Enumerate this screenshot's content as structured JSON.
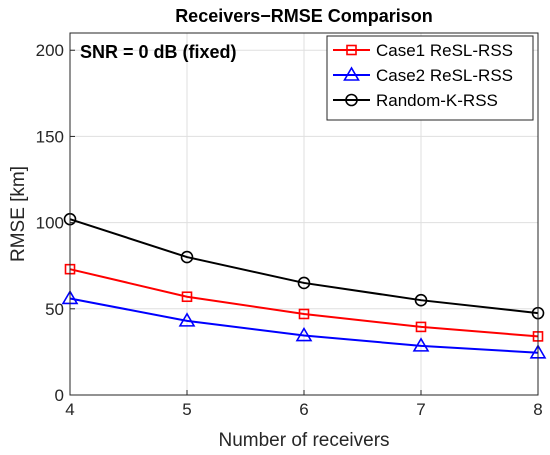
{
  "chart_data": {
    "type": "line",
    "title": "Receivers−RMSE Comparison",
    "xlabel": "Number of receivers",
    "ylabel": "RMSE [km]",
    "annotation": "SNR = 0 dB (fixed)",
    "x": [
      4,
      5,
      6,
      7,
      8
    ],
    "xticks": [
      "4",
      "5",
      "6",
      "7",
      "8"
    ],
    "yticks": [
      "0",
      "50",
      "100",
      "150",
      "200"
    ],
    "xlim": [
      4,
      8
    ],
    "ylim": [
      0,
      210
    ],
    "grid": true,
    "legend_position": "top-right",
    "series": [
      {
        "name": "Case1 ReSL-RSS",
        "values": [
          73,
          57,
          47,
          39.5,
          34
        ],
        "color": "#ff0000",
        "marker": "square"
      },
      {
        "name": "Case2 ReSL-RSS",
        "values": [
          56,
          43,
          34.5,
          28.5,
          24.5
        ],
        "color": "#0000ff",
        "marker": "triangle"
      },
      {
        "name": "Random-K-RSS",
        "values": [
          102,
          80,
          65,
          55,
          47.5
        ],
        "color": "#000000",
        "marker": "circle"
      }
    ]
  }
}
